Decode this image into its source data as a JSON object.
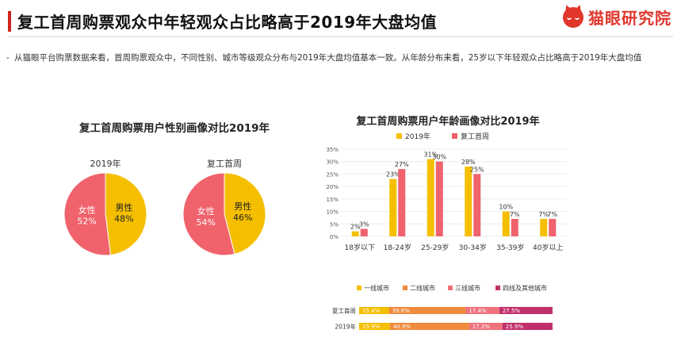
{
  "header": {
    "title": "复工首周购票观众中年轻观众占比略高于2019年大盘均值",
    "brand_name": "猫眼研究院"
  },
  "description": {
    "bullet": "-",
    "text": "从猫眼平台购票数据来看，首周购票观众中，不同性别、城市等级观众分布与2019年大盘均值基本一致。从年龄分布来看，25岁以下年轻观众占比略高于2019年大盘均值"
  },
  "colors": {
    "accent": "#d0241f",
    "yellow": "#f5bf00",
    "pink": "#f0626c",
    "orange": "#f08a3c",
    "pink_city": "#f0727a",
    "purple": "#c0306a"
  },
  "chart_data": [
    {
      "type": "pie",
      "title": "复工首周购票用户性别画像对比2019年",
      "caption": "2019年",
      "slices": [
        {
          "label": "男性",
          "value": 48,
          "display": "48%"
        },
        {
          "label": "女性",
          "value": 52,
          "display": "52%"
        }
      ]
    },
    {
      "type": "pie",
      "title": "复工首周购票用户性别画像对比2019年",
      "caption": "复工首周",
      "slices": [
        {
          "label": "男性",
          "value": 46,
          "display": "46%"
        },
        {
          "label": "女性",
          "value": 54,
          "display": "54%"
        }
      ]
    },
    {
      "type": "bar",
      "title": "复工首周购票用户年龄画像对比2019年",
      "categories": [
        "18岁以下",
        "18-24岁",
        "25-29岁",
        "30-34岁",
        "35-39岁",
        "40岁以上"
      ],
      "series": [
        {
          "name": "2019年",
          "values": [
            2,
            23,
            31,
            28,
            10,
            7
          ]
        },
        {
          "name": "复工首周",
          "values": [
            3,
            27,
            30,
            25,
            7,
            7
          ]
        }
      ],
      "yticks": [
        "0%",
        "5%",
        "10%",
        "15%",
        "20%",
        "25%",
        "30%",
        "35%"
      ],
      "ylim": [
        0,
        35
      ],
      "grid": true,
      "legend": "top"
    },
    {
      "type": "bar",
      "subtype": "stacked-horizontal-100",
      "categories": [
        "复工首周",
        "2019年"
      ],
      "series": [
        {
          "name": "一线城市",
          "values": [
            15.4,
            15.9
          ],
          "labels": [
            "15.4%",
            "15.9%"
          ]
        },
        {
          "name": "二线城市",
          "values": [
            39.6,
            40.9
          ],
          "labels": [
            "39.6%",
            "40.9%"
          ]
        },
        {
          "name": "三线城市",
          "values": [
            17.4,
            17.2
          ],
          "labels": [
            "17.4%",
            "17.2%"
          ]
        },
        {
          "name": "四线及其他城市",
          "values": [
            27.5,
            25.9
          ],
          "labels": [
            "27.5%",
            "25.9%"
          ]
        }
      ],
      "legend": "top"
    }
  ]
}
